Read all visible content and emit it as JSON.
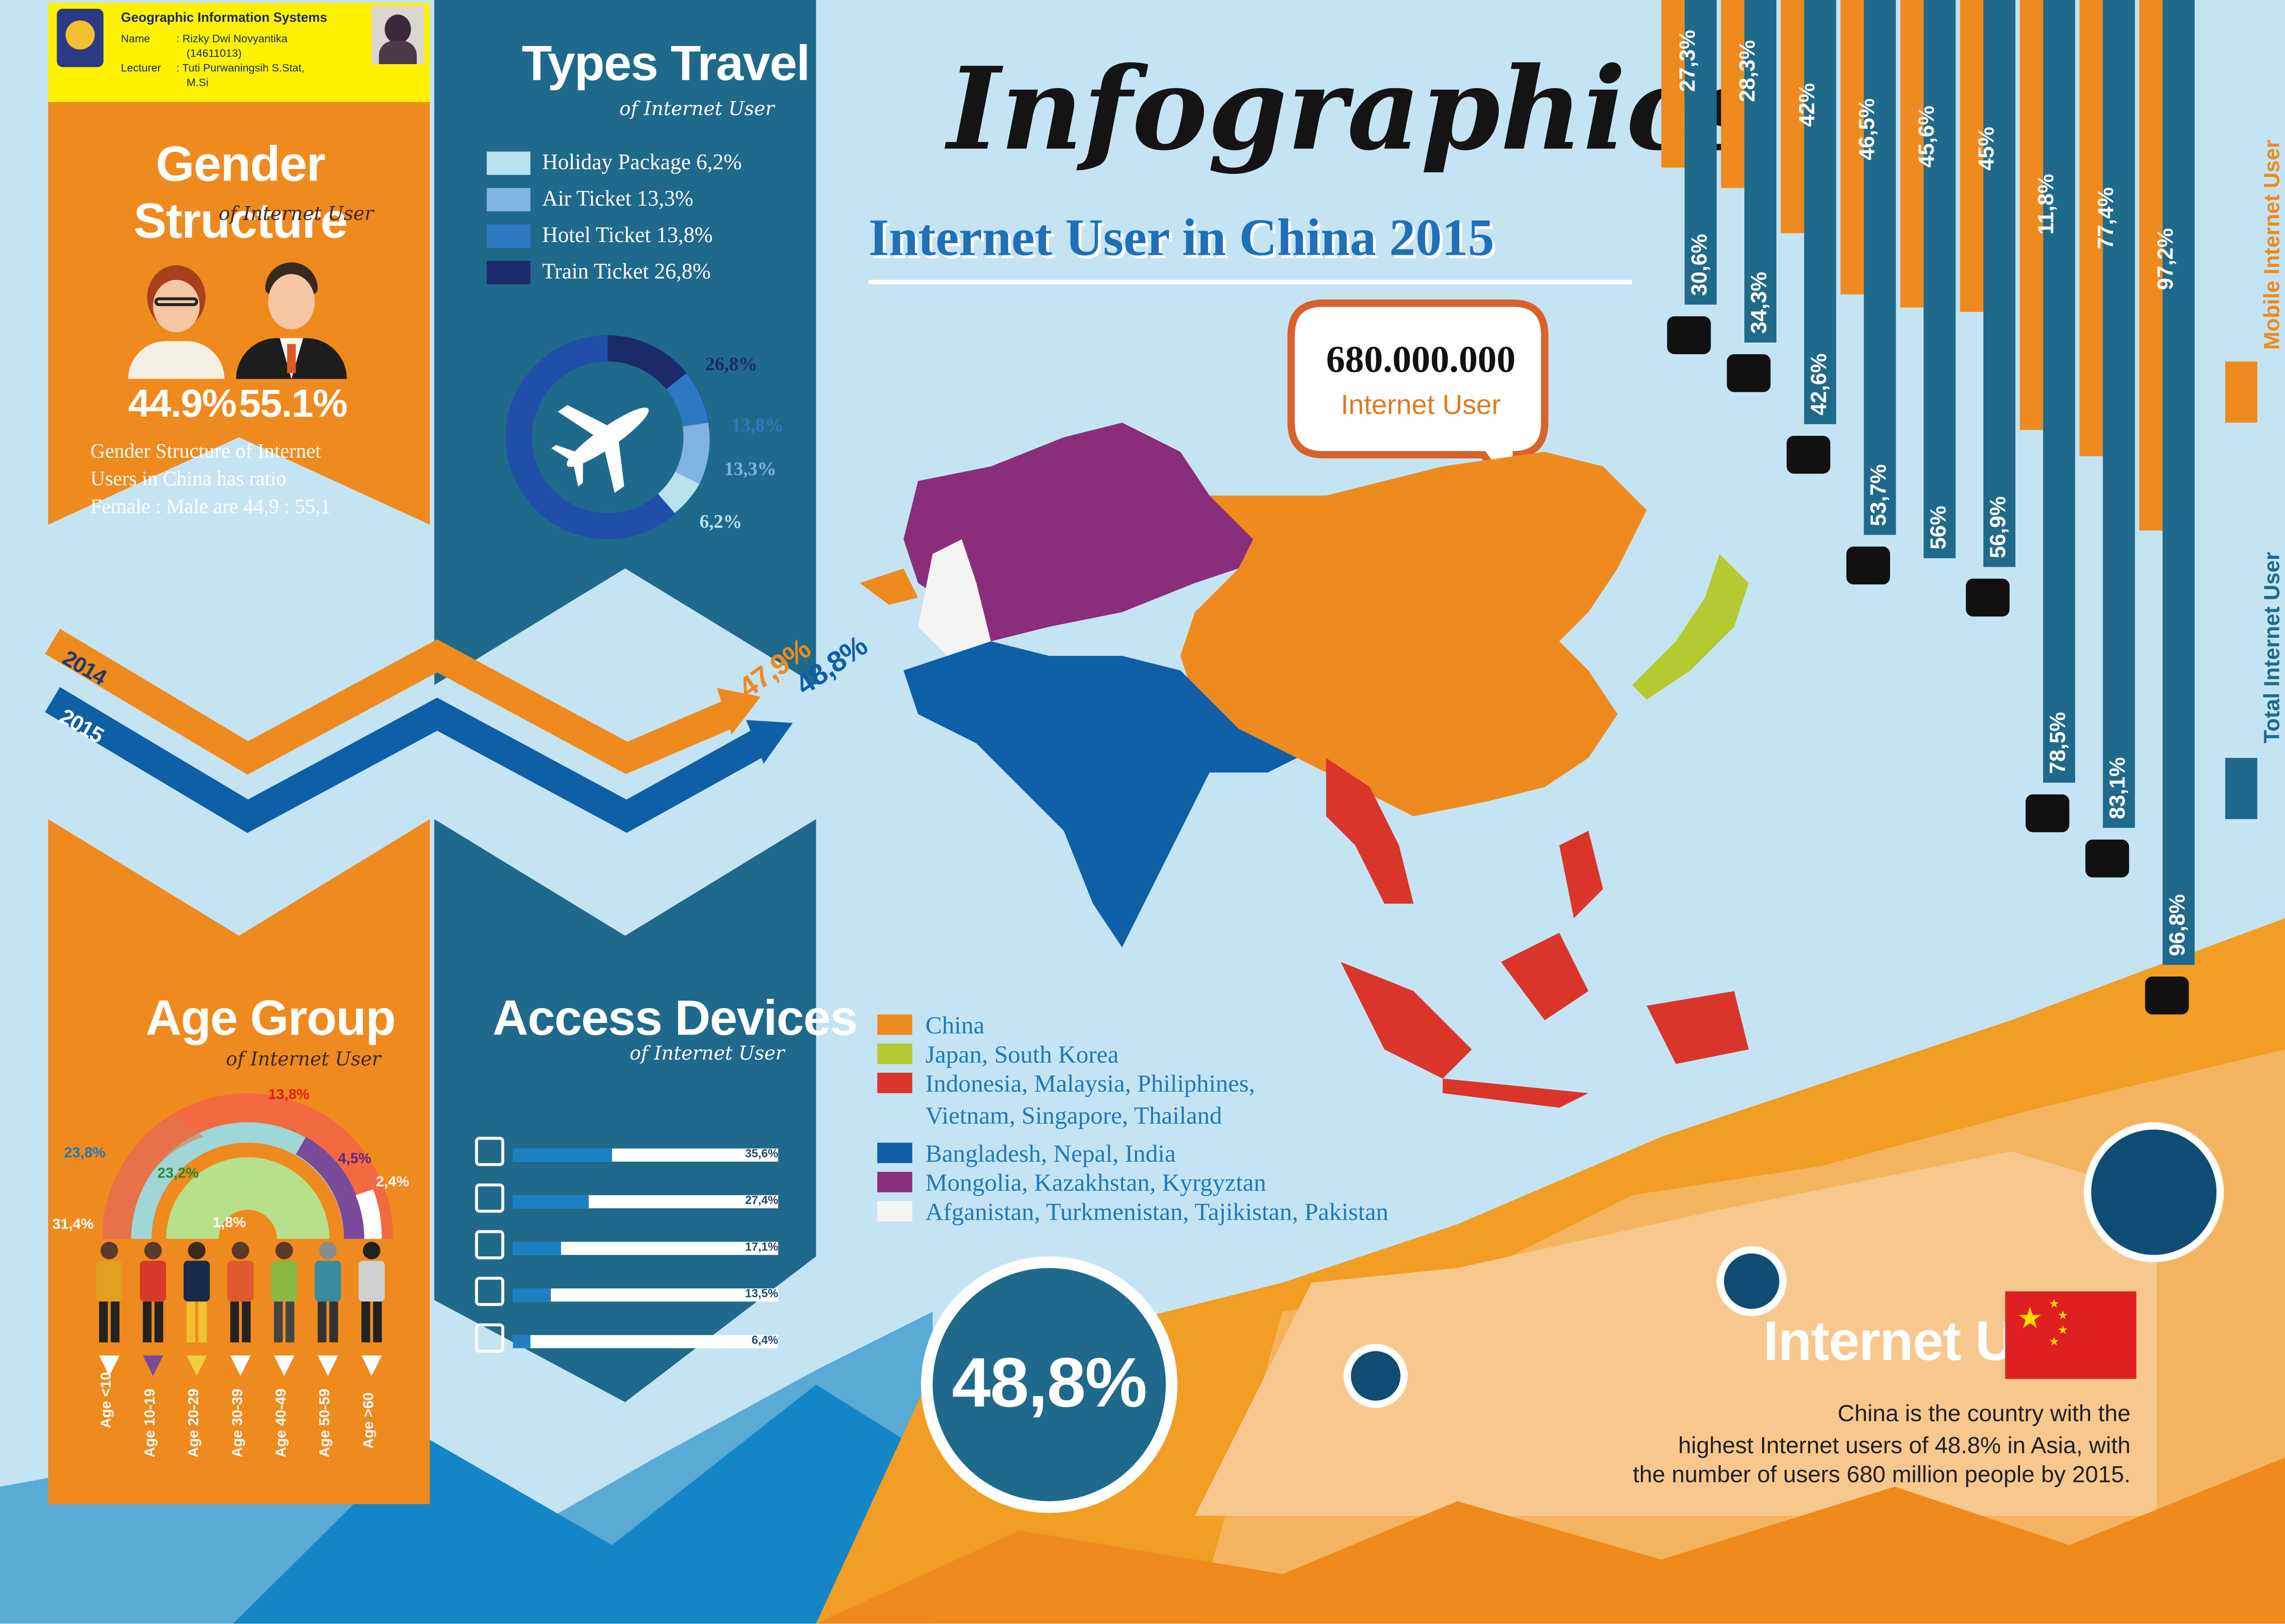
{
  "header": {
    "course": "Geographic Information Systems",
    "name_label": "Name",
    "name_value": ": Rizky Dwi Novyantika",
    "student_id": "(14611013)",
    "lecturer_label": "Lecturer",
    "lecturer_value": ": Tuti Purwaningsih S.Stat,",
    "lecturer_value2": "M.Si"
  },
  "title": {
    "script": "Infographics",
    "main": "Internet User in China 2015"
  },
  "gender": {
    "title": "Gender Structure",
    "subtitle": "of Internet User",
    "female": "44.9%",
    "male": "55.1%",
    "desc1": "Gender Structure of Internet",
    "desc2": "Users in China has ratio",
    "desc3": "Female : Male are 44,9 : 55,1"
  },
  "travel": {
    "title": "Types Travel",
    "subtitle": "of Internet User",
    "legend": [
      {
        "label": "Holiday Package 6,2%",
        "color": "#b8e2ee"
      },
      {
        "label": "Air Ticket 13,3%",
        "color": "#7fb4df"
      },
      {
        "label": "Hotel Ticket 13,8%",
        "color": "#2e78c2"
      },
      {
        "label": "Train Ticket 26,8%",
        "color": "#1b2a6b"
      }
    ],
    "donut_labels": [
      "26,8%",
      "13,8%",
      "13,3%",
      "6,2%"
    ]
  },
  "trend": {
    "year2014": "2014",
    "year2015": "2015",
    "val2014": "47,9%",
    "val2015": "48,8%"
  },
  "speech": {
    "number": "680.000.000",
    "label": "Internet User"
  },
  "map_legend": [
    {
      "label": "China",
      "color": "#ef8a1e"
    },
    {
      "label": "Japan, South Korea",
      "color": "#b5c930"
    },
    {
      "label": "Indonesia, Malaysia, Philiphines,",
      "label2": "Vietnam, Singapore, Thailand",
      "color": "#d9352b"
    },
    {
      "label": "Bangladesh, Nepal, India",
      "color": "#0f5fa6"
    },
    {
      "label": "Mongolia, Kazakhstan, Kyrgyztan",
      "color": "#8a2e7c"
    },
    {
      "label": "Afganistan, Turkmenistan, Tajikistan, Pakistan",
      "color": "#f4f4f4"
    }
  ],
  "age": {
    "title": "Age Group",
    "subtitle": "of Internet User",
    "values": [
      "31,4%",
      "23,8%",
      "23,2%",
      "1,8%",
      "13,8%",
      "4,5%",
      "2,4%"
    ],
    "groups": [
      "Age <10",
      "Age 10-19",
      "Age 20-29",
      "Age 30-39",
      "Age 40-49",
      "Age 50-59",
      "Age >60"
    ]
  },
  "devices": {
    "title": "Access Devices",
    "subtitle": "of Internet User",
    "items": [
      {
        "icon": "smartphone-icon",
        "value": "35,6%",
        "pct": 35.6
      },
      {
        "icon": "desktop-icon",
        "value": "27,4%",
        "pct": 27.4
      },
      {
        "icon": "laptop-icon",
        "value": "17,1%",
        "pct": 17.1
      },
      {
        "icon": "tablet-icon",
        "value": "13,5%",
        "pct": 13.5
      },
      {
        "icon": "tv-icon",
        "value": "6,4%",
        "pct": 6.4
      }
    ]
  },
  "big_pct": "48,8%",
  "activities": [
    {
      "icon": "weibo-icon",
      "mobile": "27,3%",
      "total": "30,6%",
      "mobile_v": 27.3,
      "total_v": 30.6
    },
    {
      "icon": "briefcase-icon",
      "mobile": "28,3%",
      "total": "34,3%",
      "mobile_v": 28.3,
      "total_v": 34.3
    },
    {
      "icon": "books-icon",
      "mobile": "42%",
      "total": "42,6%",
      "mobile_v": 42,
      "total_v": 42.6
    },
    {
      "icon": "shopping-icon",
      "mobile": "46,5%",
      "total": "53,7%",
      "mobile_v": 46.5,
      "total_v": 53.7
    },
    {
      "icon": "none",
      "mobile": "45,6%",
      "total": "56%",
      "mobile_v": 45.6,
      "total_v": 56
    },
    {
      "icon": "gamepad-icon",
      "mobile": "45%",
      "total": "56,9%",
      "mobile_v": 45,
      "total_v": 56.9
    },
    {
      "icon": "moneybag-icon",
      "mobile": "11,8%",
      "total": "78,5%",
      "mobile_v": 11.8,
      "total_v": 78.5
    },
    {
      "icon": "newspaper-icon",
      "mobile": "77,4%",
      "total": "83,1%",
      "mobile_v": 77.4,
      "total_v": 83.1
    },
    {
      "icon": "mail-icon",
      "mobile": "97,2%",
      "total": "96,8%",
      "mobile_v": 97.2,
      "total_v": 96.8
    }
  ],
  "bar_legend": {
    "mobile": "Mobile Internet User",
    "total": "Total Internet User"
  },
  "footer": {
    "title": "Internet User",
    "line1": "China is the country with the",
    "line2": "highest Internet users of 48.8% in Asia, with",
    "line3": "the number of users 680 million people by 2015."
  },
  "colors": {
    "orange": "#ef8a1e",
    "teal": "#1f6a8a",
    "navy": "#0f4d74",
    "bg": "#c4e4f4"
  }
}
